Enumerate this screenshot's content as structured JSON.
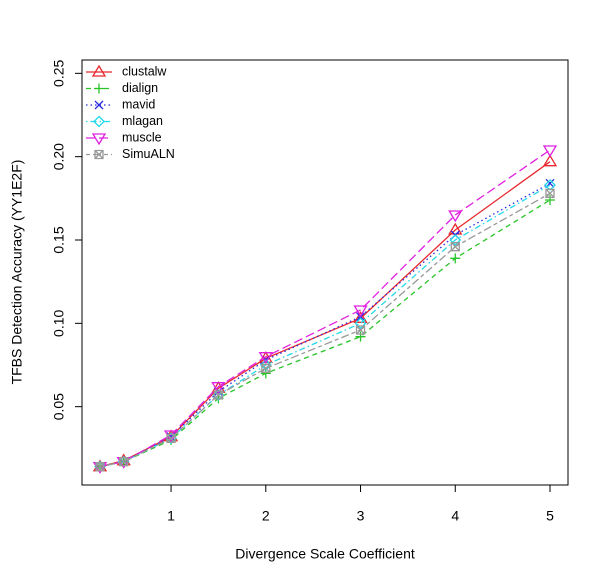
{
  "chart_data": {
    "type": "line",
    "xlabel": "Divergence Scale Coefficient",
    "ylabel": "TFBS Detection Accuracy (YY1E2F)",
    "x": [
      0.25,
      0.5,
      1,
      1.5,
      2,
      3,
      4,
      5
    ],
    "xlim": [
      0.06,
      5.19
    ],
    "xticks": [
      1,
      2,
      3,
      4,
      5
    ],
    "ylim": [
      0.003,
      0.258
    ],
    "yticks": [
      0.05,
      {
        "value": 0.1,
        "label": "0.10"
      },
      0.15,
      {
        "value": 0.2,
        "label": "0.20"
      },
      0.25
    ],
    "legend": "topleft",
    "series": [
      {
        "name": "clustalw",
        "color": "#e8282e",
        "marker": "triangle-up",
        "dash": "solid",
        "values": [
          0.014,
          0.0176,
          0.032,
          0.061,
          0.079,
          0.103,
          0.156,
          0.197
        ]
      },
      {
        "name": "dialign",
        "color": "#28c428",
        "marker": "plus",
        "dash": "dashed",
        "values": [
          0.014,
          0.017,
          0.03,
          0.055,
          0.07,
          0.092,
          0.139,
          0.174
        ]
      },
      {
        "name": "mavid",
        "color": "#2a2ae0",
        "marker": "cross",
        "dash": "dotted",
        "values": [
          0.014,
          0.017,
          0.032,
          0.059,
          0.078,
          0.104,
          0.153,
          0.184
        ]
      },
      {
        "name": "mlagan",
        "color": "#22d8e8",
        "marker": "diamond",
        "dash": "dotdash",
        "values": [
          0.014,
          0.017,
          0.031,
          0.057,
          0.075,
          0.1,
          0.15,
          0.183
        ]
      },
      {
        "name": "muscle",
        "color": "#e020e0",
        "marker": "triangle-down",
        "dash": "longdash",
        "values": [
          0.014,
          0.017,
          0.033,
          0.062,
          0.08,
          0.108,
          0.165,
          0.204
        ]
      },
      {
        "name": "SimuALN",
        "color": "#999999",
        "marker": "boxcross",
        "dash": "twodash",
        "values": [
          0.014,
          0.017,
          0.031,
          0.057,
          0.073,
          0.096,
          0.146,
          0.178
        ]
      }
    ]
  }
}
